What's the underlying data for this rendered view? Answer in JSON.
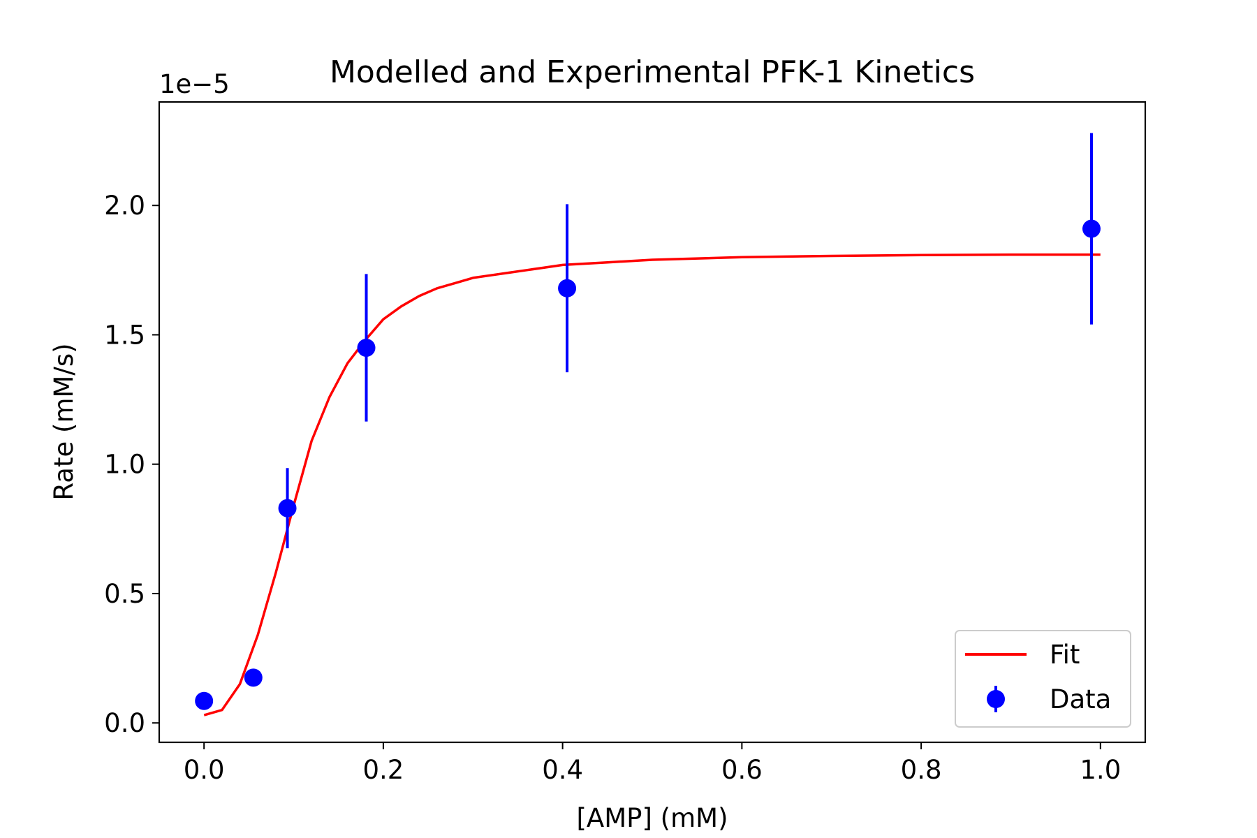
{
  "chart_data": {
    "type": "scatter",
    "title": "Modelled and Experimental PFK-1 Kinetics",
    "xlabel": "[AMP] (mM)",
    "ylabel": "Rate (mM/s)",
    "y_offset_label": "1e−5",
    "xlim": [
      -0.05,
      1.05
    ],
    "ylim": [
      -0.075,
      2.4
    ],
    "y_scale_factor": 1e-05,
    "x_ticks": [
      0.0,
      0.2,
      0.4,
      0.6,
      0.8,
      1.0
    ],
    "x_tick_labels": [
      "0.0",
      "0.2",
      "0.4",
      "0.6",
      "0.8",
      "1.0"
    ],
    "y_ticks": [
      0.0,
      0.5,
      1.0,
      1.5,
      2.0
    ],
    "y_tick_labels": [
      "0.0",
      "0.5",
      "1.0",
      "1.5",
      "2.0"
    ],
    "grid": false,
    "legend_position": "lower-right",
    "series": [
      {
        "name": "Fit",
        "kind": "line",
        "color": "#ff0000",
        "x": [
          0.0,
          0.02,
          0.04,
          0.06,
          0.08,
          0.1,
          0.12,
          0.14,
          0.16,
          0.18,
          0.2,
          0.22,
          0.24,
          0.26,
          0.28,
          0.3,
          0.32,
          0.34,
          0.36,
          0.38,
          0.4,
          0.45,
          0.5,
          0.6,
          0.7,
          0.8,
          0.9,
          1.0
        ],
        "y": [
          0.03,
          0.05,
          0.15,
          0.34,
          0.58,
          0.84,
          1.09,
          1.26,
          1.39,
          1.48,
          1.56,
          1.61,
          1.65,
          1.68,
          1.7,
          1.72,
          1.73,
          1.74,
          1.75,
          1.76,
          1.77,
          1.78,
          1.79,
          1.8,
          1.805,
          1.808,
          1.81,
          1.81
        ]
      },
      {
        "name": "Data",
        "kind": "errorbar",
        "color": "#0000ff",
        "x": [
          0.0,
          0.055,
          0.093,
          0.181,
          0.405,
          0.99
        ],
        "y": [
          0.085,
          0.175,
          0.83,
          1.45,
          1.68,
          1.91
        ],
        "yerr": [
          0.0,
          0.0,
          0.155,
          0.285,
          0.325,
          0.37
        ]
      }
    ]
  }
}
